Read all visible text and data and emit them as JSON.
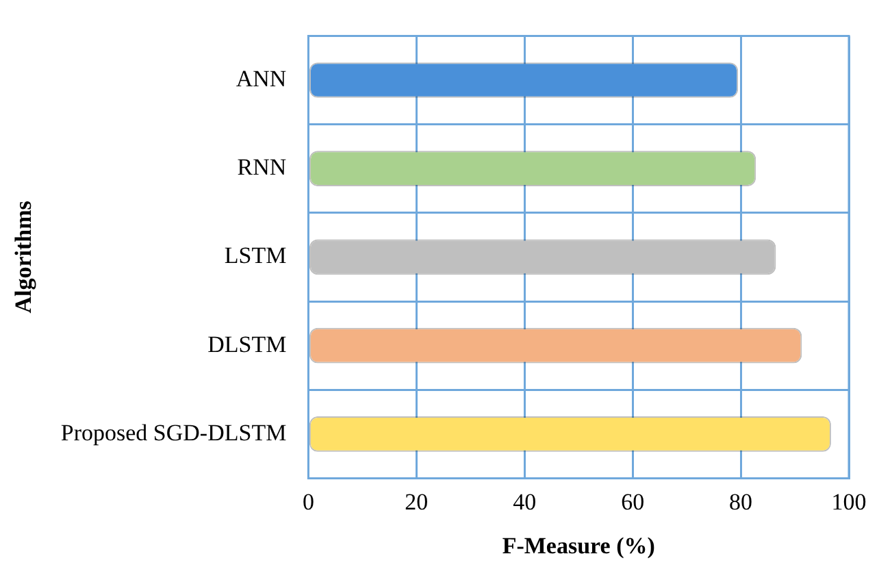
{
  "chart_data": {
    "type": "bar",
    "orientation": "horizontal",
    "xlabel": "F-Measure (%)",
    "ylabel": "Algorithms",
    "categories": [
      "ANN",
      "RNN",
      "LSTM",
      "DLSTM",
      "Proposed SGD-DLSTM"
    ],
    "values": [
      79.5,
      82.8,
      86.5,
      91.3,
      96.7
    ],
    "colors": [
      "#4a90d9",
      "#a9d18e",
      "#bfbfbf",
      "#f4b183",
      "#ffe066"
    ],
    "xlim": [
      0,
      100
    ],
    "xticks": [
      0,
      20,
      40,
      60,
      80,
      100
    ],
    "grid": true,
    "legend": false
  }
}
